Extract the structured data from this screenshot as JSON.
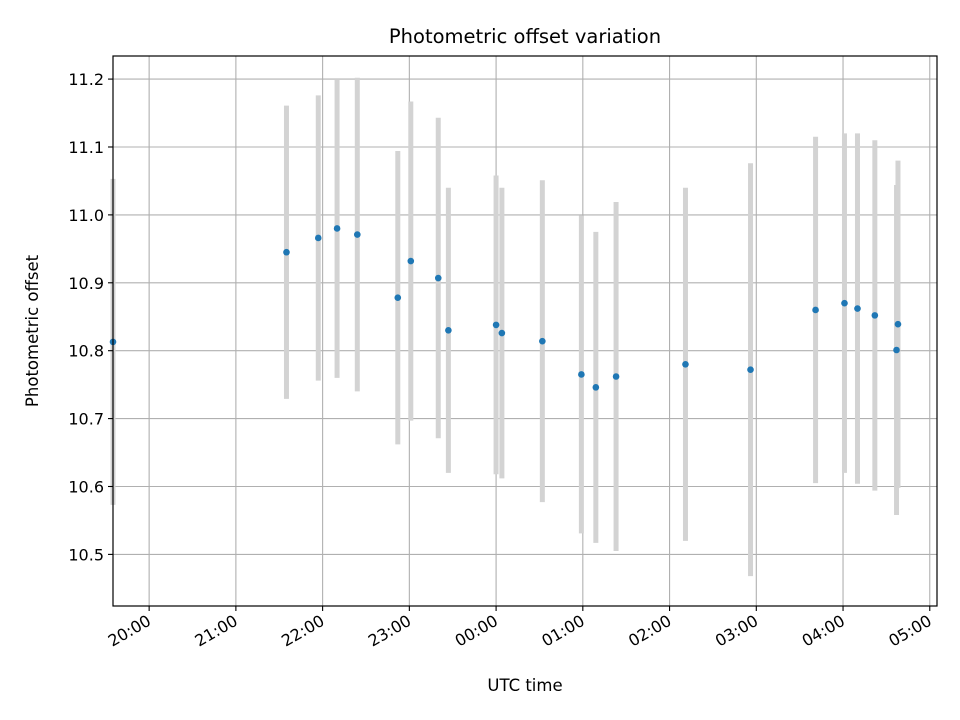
{
  "chart_data": {
    "type": "scatter",
    "title": "Photometric offset variation",
    "xlabel": "UTC time",
    "ylabel": "Photometric offset",
    "x_tick_labels": [
      "20:00",
      "21:00",
      "22:00",
      "23:00",
      "00:00",
      "01:00",
      "02:00",
      "03:00",
      "04:00",
      "05:00"
    ],
    "y_tick_labels": [
      "10.5",
      "10.6",
      "10.7",
      "10.8",
      "10.9",
      "11.0",
      "11.1",
      "11.2"
    ],
    "xlim": [
      "19:35",
      "05:05"
    ],
    "ylim": [
      10.424,
      11.234
    ],
    "grid": true,
    "errorbar_color": "#d3d3d3",
    "marker_color": "#1f77b4",
    "points": [
      {
        "x": "19:35",
        "y": 10.813,
        "err": 0.24
      },
      {
        "x": "21:35",
        "y": 10.945,
        "err": 0.216
      },
      {
        "x": "21:57",
        "y": 10.966,
        "err": 0.21
      },
      {
        "x": "22:10",
        "y": 10.98,
        "err": 0.22
      },
      {
        "x": "22:24",
        "y": 10.971,
        "err": 0.231
      },
      {
        "x": "22:52",
        "y": 10.878,
        "err": 0.216
      },
      {
        "x": "23:01",
        "y": 10.932,
        "err": 0.235
      },
      {
        "x": "23:20",
        "y": 10.907,
        "err": 0.236
      },
      {
        "x": "23:27",
        "y": 10.83,
        "err": 0.21
      },
      {
        "x": "00:00",
        "y": 10.838,
        "err": 0.22
      },
      {
        "x": "00:04",
        "y": 10.826,
        "err": 0.214
      },
      {
        "x": "00:32",
        "y": 10.814,
        "err": 0.237
      },
      {
        "x": "00:59",
        "y": 10.765,
        "err": 0.234
      },
      {
        "x": "01:09",
        "y": 10.746,
        "err": 0.229
      },
      {
        "x": "01:23",
        "y": 10.762,
        "err": 0.257
      },
      {
        "x": "02:11",
        "y": 10.78,
        "err": 0.26
      },
      {
        "x": "02:56",
        "y": 10.772,
        "err": 0.304
      },
      {
        "x": "03:41",
        "y": 10.86,
        "err": 0.255
      },
      {
        "x": "04:01",
        "y": 10.87,
        "err": 0.25
      },
      {
        "x": "04:10",
        "y": 10.862,
        "err": 0.258
      },
      {
        "x": "04:22",
        "y": 10.852,
        "err": 0.258
      },
      {
        "x": "04:37",
        "y": 10.801,
        "err": 0.243
      },
      {
        "x": "04:38",
        "y": 10.839,
        "err": 0.241
      }
    ]
  }
}
